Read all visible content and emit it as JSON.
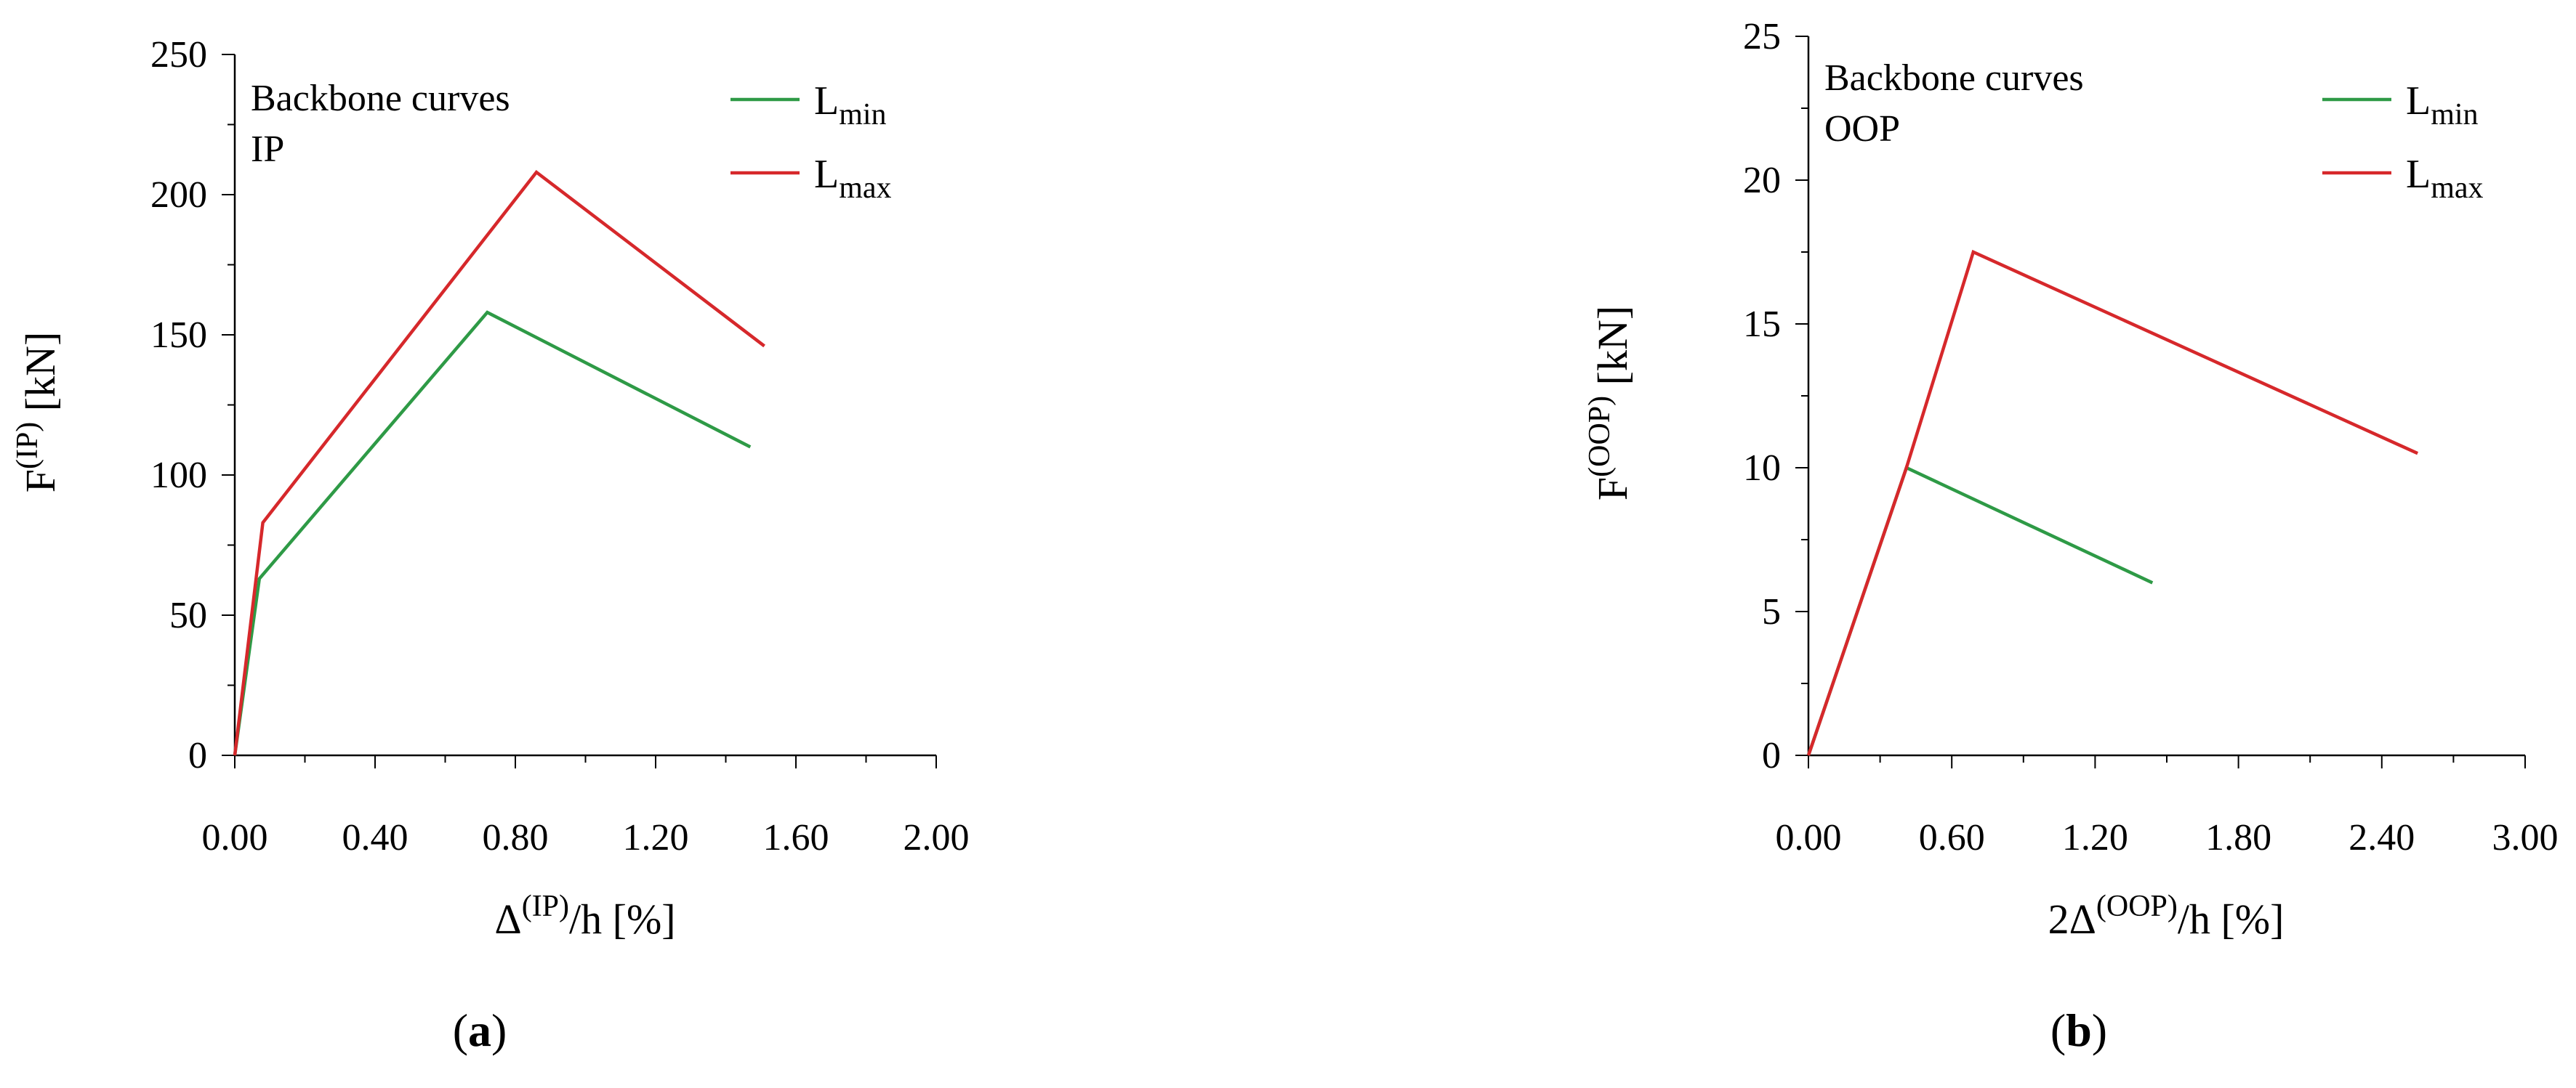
{
  "chart_data": [
    {
      "type": "line",
      "caption": "(a)",
      "caption_letter": "a",
      "annotation": [
        "Backbone curves",
        "IP"
      ],
      "xlabel": {
        "prefix": "Δ",
        "sup": "(IP)",
        "suffix": "/h [%]"
      },
      "ylabel": {
        "prefix": "F",
        "sup": "(IP)",
        "suffix": " [kN]"
      },
      "xlim": [
        0,
        2.0
      ],
      "ylim": [
        0,
        250
      ],
      "xticks": [
        "0.00",
        "0.40",
        "0.80",
        "1.20",
        "1.60",
        "2.00"
      ],
      "yticks": [
        "0",
        "50",
        "100",
        "150",
        "200",
        "250"
      ],
      "grid": false,
      "legend_position": "top-right",
      "series": [
        {
          "name": "L",
          "name_sub": "min",
          "color": "#2e9a46",
          "x": [
            0,
            0.07,
            0.72,
            1.47
          ],
          "y": [
            0,
            63,
            158,
            110
          ]
        },
        {
          "name": "L",
          "name_sub": "max",
          "color": "#d6282b",
          "x": [
            0,
            0.08,
            0.86,
            1.51
          ],
          "y": [
            0,
            83,
            208,
            146
          ]
        }
      ]
    },
    {
      "type": "line",
      "caption": "(b)",
      "caption_letter": "b",
      "annotation": [
        "Backbone curves",
        "OOP"
      ],
      "xlabel": {
        "prefix": "2Δ",
        "sup": "(OOP)",
        "suffix": "/h [%]"
      },
      "ylabel": {
        "prefix": "F",
        "sup": "(OOP)",
        "suffix": " [kN]"
      },
      "xlim": [
        0,
        3.0
      ],
      "ylim": [
        0,
        25
      ],
      "xticks": [
        "0.00",
        "0.60",
        "1.20",
        "1.80",
        "2.40",
        "3.00"
      ],
      "yticks": [
        "0",
        "5",
        "10",
        "15",
        "20",
        "25"
      ],
      "grid": false,
      "legend_position": "top-right",
      "series": [
        {
          "name": "L",
          "name_sub": "min",
          "color": "#2e9a46",
          "x": [
            0,
            0.41,
            1.44
          ],
          "y": [
            0,
            10,
            6
          ]
        },
        {
          "name": "L",
          "name_sub": "max",
          "color": "#d6282b",
          "x": [
            0,
            0.41,
            0.69,
            2.55
          ],
          "y": [
            0,
            10,
            17.5,
            10.5
          ]
        }
      ]
    }
  ]
}
